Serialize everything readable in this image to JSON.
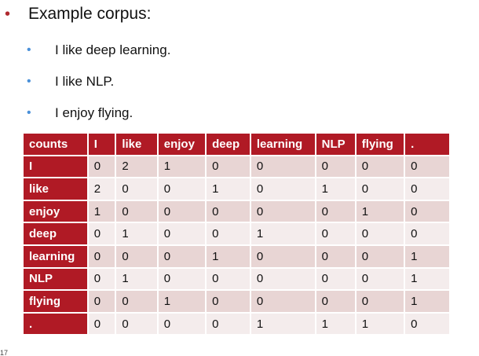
{
  "heading": "Example corpus:",
  "sentences": [
    "I like deep learning.",
    "I like NLP.",
    "I enjoy flying."
  ],
  "table": {
    "corner": "counts",
    "columns": [
      "I",
      "like",
      "enjoy",
      "deep",
      "learning",
      "NLP",
      "flying",
      "."
    ],
    "rows": [
      {
        "label": "I",
        "values": [
          "0",
          "2",
          "1",
          "0",
          "0",
          "0",
          "0",
          "0"
        ]
      },
      {
        "label": "like",
        "values": [
          "2",
          "0",
          "0",
          "1",
          "0",
          "1",
          "0",
          "0"
        ]
      },
      {
        "label": "enjoy",
        "values": [
          "1",
          "0",
          "0",
          "0",
          "0",
          "0",
          "1",
          "0"
        ]
      },
      {
        "label": "deep",
        "values": [
          "0",
          "1",
          "0",
          "0",
          "1",
          "0",
          "0",
          "0"
        ]
      },
      {
        "label": "learning",
        "values": [
          "0",
          "0",
          "0",
          "1",
          "0",
          "0",
          "0",
          "1"
        ]
      },
      {
        "label": "NLP",
        "values": [
          "0",
          "1",
          "0",
          "0",
          "0",
          "0",
          "0",
          "1"
        ]
      },
      {
        "label": "flying",
        "values": [
          "0",
          "0",
          "1",
          "0",
          "0",
          "0",
          "0",
          "1"
        ]
      },
      {
        "label": ".",
        "values": [
          "0",
          "0",
          "0",
          "0",
          "1",
          "1",
          "1",
          "0"
        ]
      }
    ]
  },
  "slide_number": "17",
  "colors": {
    "header_red": "#b01a25",
    "main_bullet": "#b02a30",
    "sub_bullet": "#4a90d9",
    "row_odd": "#e8d5d4",
    "row_even": "#f4ecec"
  }
}
